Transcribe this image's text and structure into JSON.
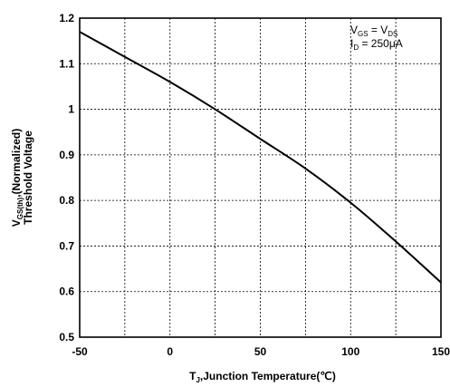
{
  "chart_data": {
    "type": "line",
    "title": "",
    "xlabel": {
      "symbol": "T",
      "sub": "J",
      "text": ",Junction Temperature(℃)"
    },
    "ylabel": {
      "symbol": "V",
      "sub": "GS(th)",
      "line1": ",(Normalized)",
      "line2": "Threshold Voltage"
    },
    "xlim": [
      -50,
      150
    ],
    "ylim": [
      0.5,
      1.2
    ],
    "x_ticks": [
      -50,
      0,
      50,
      100,
      150
    ],
    "x_ticklabels": [
      "-50",
      "0",
      "50",
      "100",
      "150"
    ],
    "y_ticks": [
      0.5,
      0.6,
      0.7,
      0.8,
      0.9,
      1.0,
      1.1,
      1.2
    ],
    "y_ticklabels": [
      "0.5",
      "0.6",
      "0.7",
      "0.8",
      "0.9",
      "1",
      "1.1",
      "1.2"
    ],
    "x_minor_grid": [
      -25,
      25,
      75,
      125
    ],
    "grid": true,
    "annotations": {
      "line1": {
        "a": "V",
        "a_sub": "GS",
        "eq": " = ",
        "b": "V",
        "b_sub": "DS"
      },
      "line2": {
        "a": "I",
        "a_sub": "D",
        "eq": " = 250μA"
      },
      "position": "top-right"
    },
    "series": [
      {
        "x": [
          -50,
          -25,
          0,
          25,
          50,
          75,
          100,
          125,
          150
        ],
        "y": [
          1.17,
          1.115,
          1.06,
          1.0,
          0.935,
          0.87,
          0.795,
          0.71,
          0.62
        ]
      }
    ]
  }
}
